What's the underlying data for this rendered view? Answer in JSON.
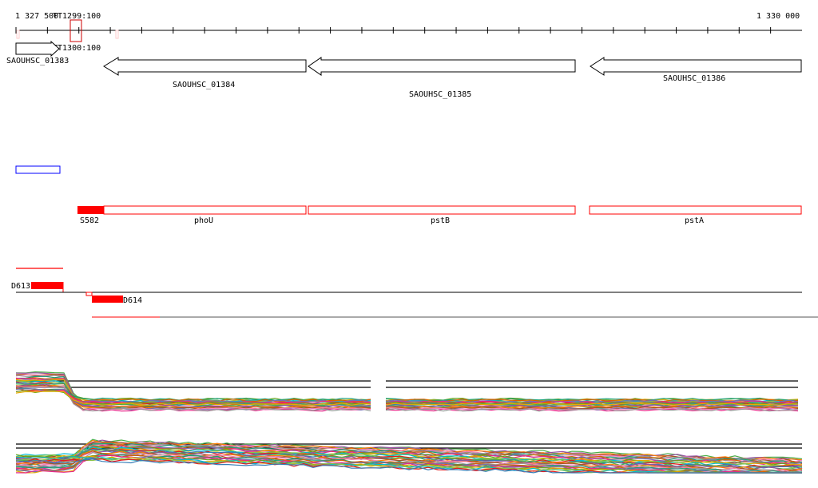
{
  "ruler": {
    "start_label": "1 327 500",
    "end_label": "1 330 000"
  },
  "terminators": [
    {
      "label": "TT1299:100"
    },
    {
      "label": "TT1300:100"
    }
  ],
  "genes": [
    {
      "label": "SAOUHSC_01383",
      "strand": "+"
    },
    {
      "label": "SAOUHSC_01384",
      "strand": "-"
    },
    {
      "label": "SAOUHSC_01385",
      "strand": "-"
    },
    {
      "label": "SAOUHSC_01386",
      "strand": "-"
    }
  ],
  "operon_genes": [
    {
      "label": "phoU"
    },
    {
      "label": "pstB"
    },
    {
      "label": "pstA"
    }
  ],
  "features": [
    {
      "label": "S582"
    },
    {
      "label": "D613"
    },
    {
      "label": "D614"
    }
  ],
  "colors": {
    "feature": "#ff0000",
    "gene_outline": "#000000",
    "blue_box": "#0000ff"
  }
}
